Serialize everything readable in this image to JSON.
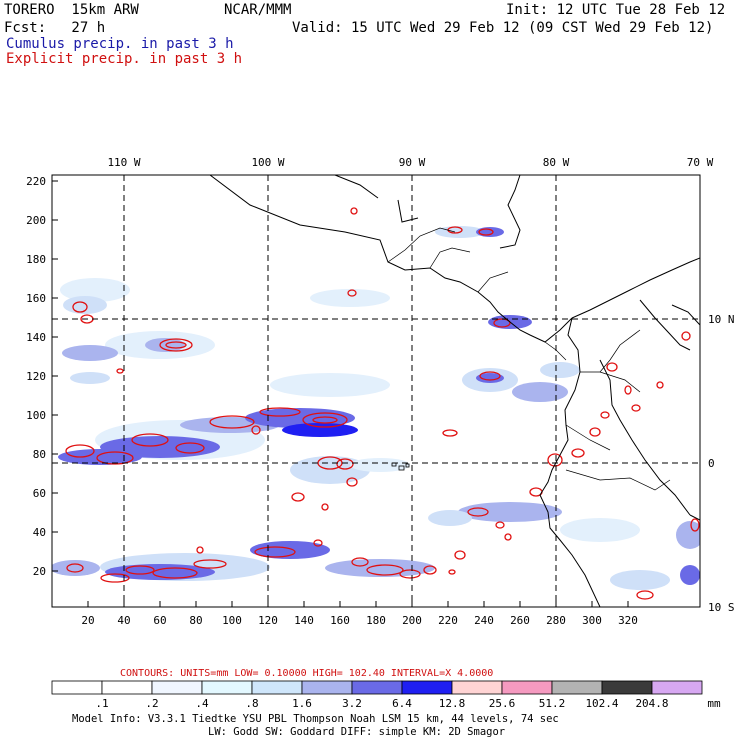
{
  "header": {
    "model": "TORERO  15km ARW",
    "org": "NCAR/MMM",
    "init": "Init: 12 UTC Tue 28 Feb 12",
    "fcst": "Fcst:   27 h",
    "valid": "Valid: 15 UTC Wed 29 Feb 12 (09 CST Wed 29 Feb 12)",
    "cumulus": "Cumulus precip. in past 3 h",
    "explicit": "Explicit precip. in past 3 h"
  },
  "map": {
    "lon_labels": [
      "110 W",
      "100 W",
      "90 W",
      "80 W",
      "70 W"
    ],
    "lat_labels": [
      "10 N",
      "0",
      "10 S"
    ],
    "y_ticks": [
      "220",
      "200",
      "180",
      "160",
      "140",
      "120",
      "100",
      "80",
      "60",
      "40",
      "20"
    ],
    "x_ticks": [
      "20",
      "40",
      "60",
      "80",
      "100",
      "120",
      "140",
      "160",
      "180",
      "200",
      "220",
      "240",
      "260",
      "280",
      "300",
      "320"
    ]
  },
  "legend": {
    "contours": "CONTOURS:  UNITS=mm  LOW= 0.10000     HIGH=  102.40     INTERVAL=X  4.0000",
    "labels": [
      ".1",
      ".2",
      ".4",
      ".8",
      "1.6",
      "3.2",
      "6.4",
      "12.8",
      "25.6",
      "51.2",
      "102.4",
      "204.8"
    ],
    "unit": "mm",
    "colors": [
      "#ffffff",
      "#ffffff",
      "#f0f6ff",
      "#e3f8ff",
      "#cfe6fb",
      "#aab4ee",
      "#6a6ae6",
      "#1f1ff2",
      "#ffd4d4",
      "#f59ac0",
      "#b3b3b3",
      "#3a3a3a",
      "#d7a8f2"
    ]
  },
  "footer": {
    "line1": "Model Info: V3.3.1   Tiedtke YSU PBL  Thompson    Noah LSM  15 km,   44 levels,   74 sec",
    "line2": "LW: Godd SW: Goddard DIFF: simple KM: 2D Smagor"
  }
}
